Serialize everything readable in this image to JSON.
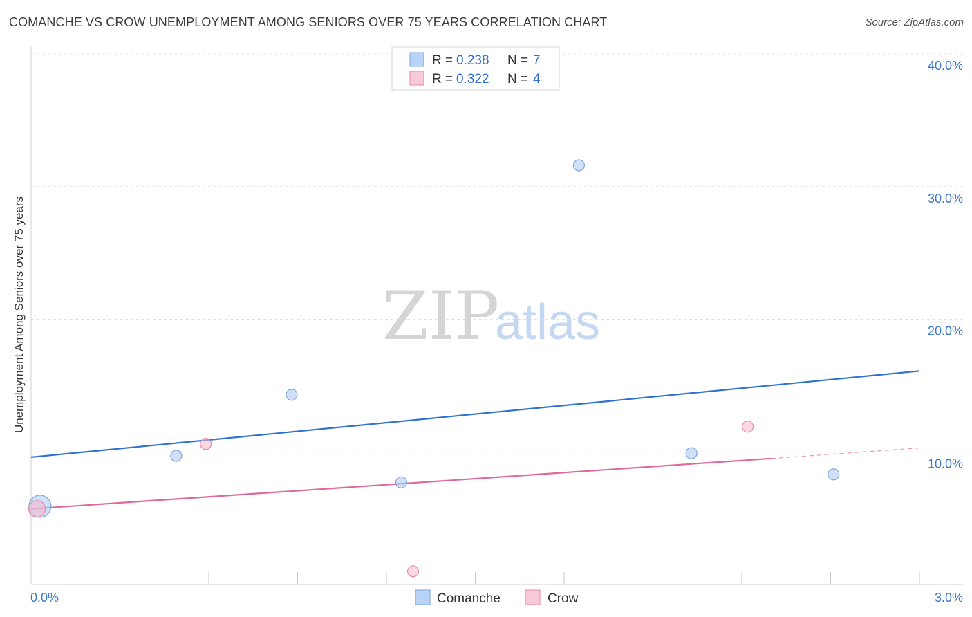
{
  "header": {
    "title": "COMANCHE VS CROW UNEMPLOYMENT AMONG SENIORS OVER 75 YEARS CORRELATION CHART",
    "source": "Source: ZipAtlas.com"
  },
  "watermark": {
    "zip": "ZIP",
    "atlas": "atlas"
  },
  "chart_data": {
    "type": "scatter",
    "title": "COMANCHE VS CROW UNEMPLOYMENT AMONG SENIORS OVER 75 YEARS CORRELATION CHART",
    "xlabel": "",
    "ylabel": "Unemployment Among Seniors over 75 years",
    "xlim": [
      0,
      3.0
    ],
    "ylim": [
      0,
      40.0
    ],
    "x_tick_labels": [
      "0.0%",
      "3.0%"
    ],
    "y_ticks": [
      10,
      20,
      30,
      40
    ],
    "y_tick_labels": [
      "10.0%",
      "20.0%",
      "30.0%",
      "40.0%"
    ],
    "grid": true,
    "legend_position": "top-center",
    "series": [
      {
        "name": "Comanche",
        "color": "#a9c8f0",
        "edge": "#7aa6de",
        "line_color": "#2f72d0",
        "R": "0.238",
        "N": "7",
        "points": [
          {
            "x": 0.03,
            "y": 5.9,
            "size": "large"
          },
          {
            "x": 0.49,
            "y": 9.7
          },
          {
            "x": 0.88,
            "y": 14.3
          },
          {
            "x": 1.25,
            "y": 7.7
          },
          {
            "x": 1.85,
            "y": 31.6
          },
          {
            "x": 2.23,
            "y": 9.9
          },
          {
            "x": 2.71,
            "y": 8.3
          }
        ],
        "trend": {
          "x0": 0.0,
          "y0": 9.6,
          "x1": 3.0,
          "y1": 16.1
        }
      },
      {
        "name": "Crow",
        "color": "#f6b8cb",
        "edge": "#e98aa8",
        "line_color": "#e0699a",
        "R": "0.322",
        "N": "4",
        "points": [
          {
            "x": 0.02,
            "y": 5.7,
            "size": "medium"
          },
          {
            "x": 0.59,
            "y": 10.6
          },
          {
            "x": 1.29,
            "y": 1.0
          },
          {
            "x": 2.42,
            "y": 11.9
          }
        ],
        "trend": {
          "x0": 0.0,
          "y0": 5.7,
          "x1": 2.5,
          "y1": 9.5
        },
        "trend_dashed": {
          "x0": 2.5,
          "y0": 9.5,
          "x1": 3.0,
          "y1": 10.3
        }
      }
    ]
  },
  "legend": {
    "r_label": "R =",
    "n_label": "N =",
    "rows": [
      {
        "r": "0.238",
        "n": "7"
      },
      {
        "r": "0.322",
        "n": "4"
      }
    ]
  },
  "bottom_legend": [
    {
      "label": "Comanche"
    },
    {
      "label": "Crow"
    }
  ]
}
